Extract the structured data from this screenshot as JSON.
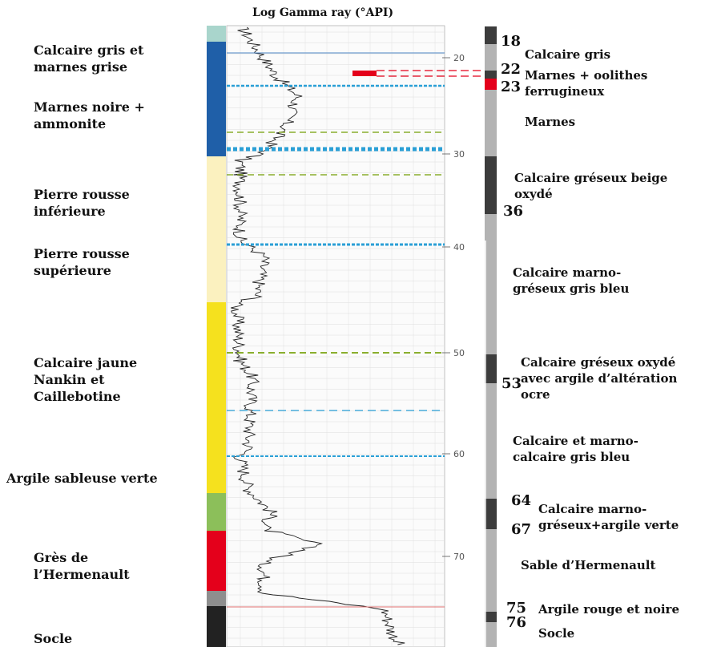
{
  "title": "Log Gamma ray (°API)",
  "left_units": [
    {
      "lines": [
        "Calcaire gris et",
        "marnes grise"
      ],
      "color": "#1f5fa8"
    },
    {
      "lines": [
        "Marnes noire +",
        "ammonite"
      ],
      "color": "#1f5fa8"
    },
    {
      "lines": [
        "Pierre rousse",
        "inférieure"
      ],
      "color": "#fbf1bf"
    },
    {
      "lines": [
        "Pierre rousse",
        "supérieure"
      ],
      "color": "#fbf1bf"
    },
    {
      "lines": [
        "Calcaire jaune",
        "Nankin et",
        "Caillebotine"
      ],
      "color": "#f5e11e"
    },
    {
      "lines": [
        "Argile sableuse verte"
      ],
      "color": "#8cbf5a"
    },
    {
      "lines": [
        "Grès de",
        "l’Hermenault"
      ],
      "color": "#e4001b"
    },
    {
      "lines": [
        "Socle"
      ],
      "color": "#222222"
    }
  ],
  "depth_ticks": [
    "20",
    "30",
    "40",
    "50",
    "60",
    "70"
  ],
  "depth_marks": [
    "18",
    "22",
    "23",
    "36",
    "53",
    "64",
    "67",
    "75",
    "76"
  ],
  "right_units": [
    {
      "lines": [
        "Calcaire gris"
      ]
    },
    {
      "lines": [
        "Marnes + oolithes",
        "ferrugineux"
      ]
    },
    {
      "lines": [
        "Marnes"
      ]
    },
    {
      "lines": [
        "Calcaire gréseux beige",
        "oxydé"
      ]
    },
    {
      "lines": [
        "Calcaire marno-",
        "gréseux gris bleu"
      ]
    },
    {
      "lines": [
        "Calcaire gréseux oxydé",
        "avec argile d’altération",
        "ocre"
      ]
    },
    {
      "lines": [
        "Calcaire  et marno-",
        "calcaire gris bleu"
      ]
    },
    {
      "lines": [
        "Calcaire marno-",
        "gréseux+argile verte"
      ]
    },
    {
      "lines": [
        "Sable d’Hermenault"
      ]
    },
    {
      "lines": [
        "Argile rouge et noire"
      ]
    },
    {
      "lines": [
        "Socle"
      ]
    }
  ],
  "colors": {
    "light_gray": "#b3b3b3",
    "dark_gray": "#3c3c3c",
    "red": "#e4001b",
    "teal": "#a9d5cc",
    "blue_dash": "#2a9fd6",
    "green_dash": "#8aae2e"
  }
}
